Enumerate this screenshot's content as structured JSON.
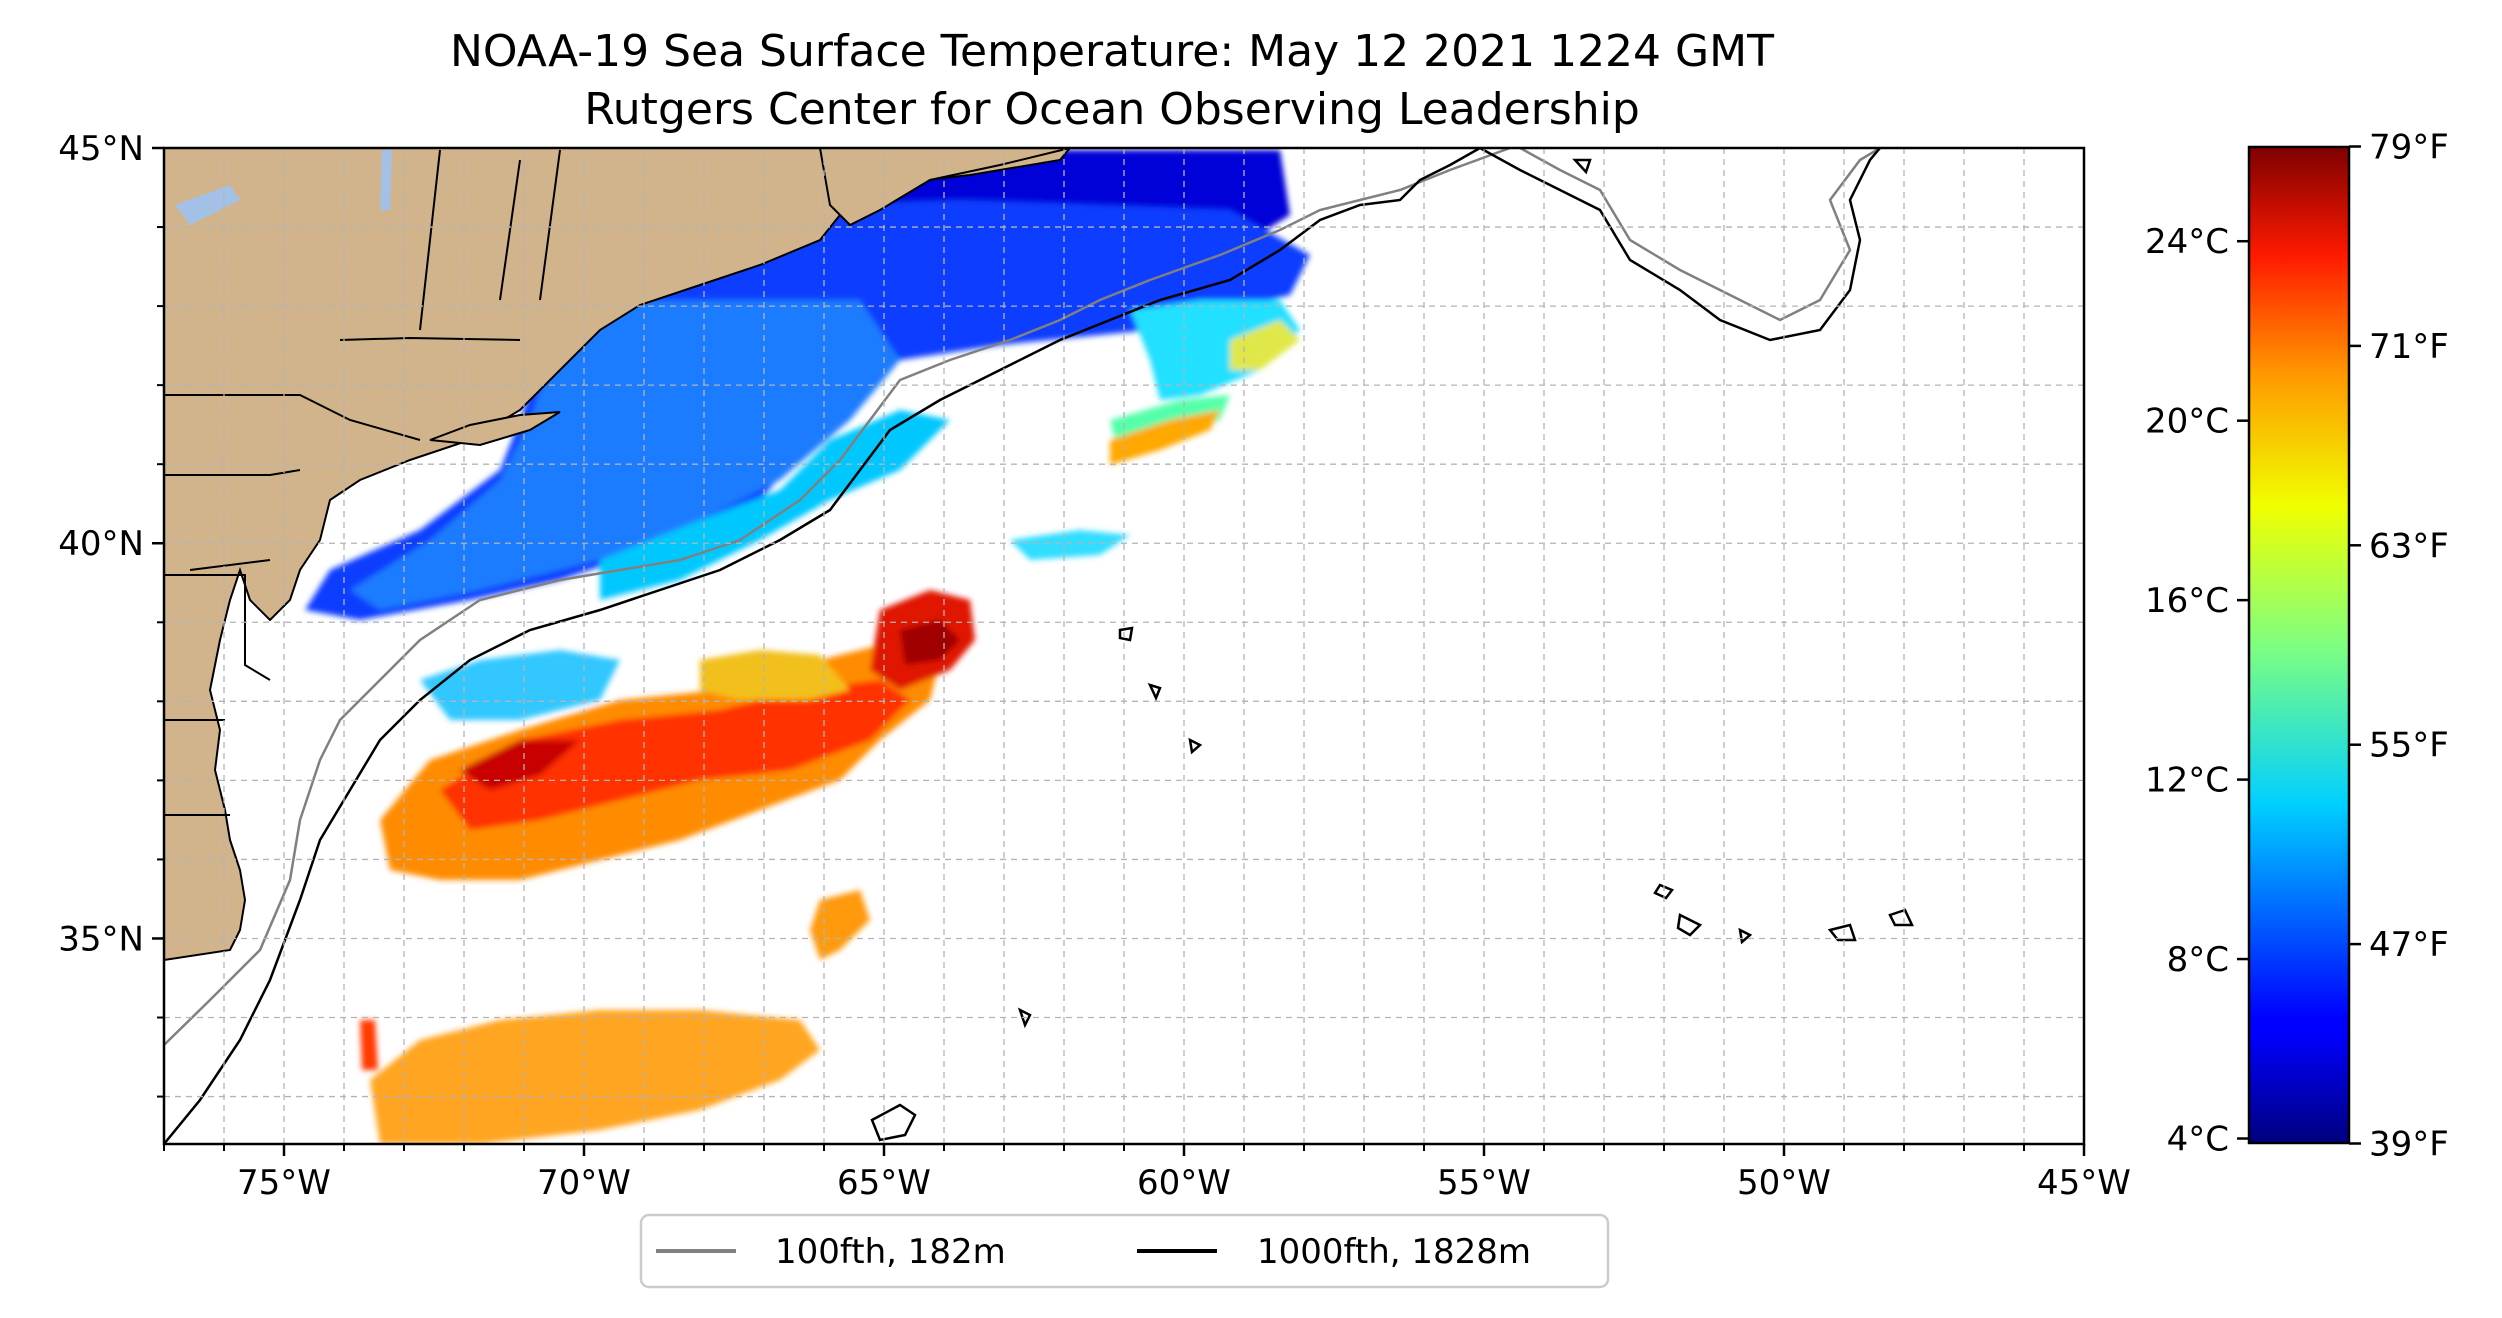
{
  "title": {
    "line1": "NOAA-19 Sea Surface Temperature: May 12 2021 1224 GMT",
    "line2": "Rutgers Center for Ocean Observing Leadership"
  },
  "map": {
    "lon_range": [
      -77,
      -45
    ],
    "lat_range": [
      32.4,
      45
    ],
    "lat_ticks": [
      {
        "value": 45,
        "label": "45°N"
      },
      {
        "value": 40,
        "label": "40°N"
      },
      {
        "value": 35,
        "label": "35°N"
      }
    ],
    "lon_ticks": [
      {
        "value": -75,
        "label": "75°W"
      },
      {
        "value": -70,
        "label": "70°W"
      },
      {
        "value": -65,
        "label": "65°W"
      },
      {
        "value": -60,
        "label": "60°W"
      },
      {
        "value": -55,
        "label": "55°W"
      },
      {
        "value": -50,
        "label": "50°W"
      },
      {
        "value": -45,
        "label": "45°W"
      }
    ],
    "grid": true,
    "land_color": "#d2b48c"
  },
  "legend": {
    "placement": "bottom-center",
    "items": [
      {
        "label": "100fth, 182m",
        "color": "#808080"
      },
      {
        "label": "1000fth, 1828m",
        "color": "#000000"
      }
    ]
  },
  "colorbar": {
    "colormap": "jet",
    "range_c": [
      3.9,
      26.1
    ],
    "celsius_ticks": [
      {
        "value": 24,
        "label": "24°C"
      },
      {
        "value": 20,
        "label": "20°C"
      },
      {
        "value": 16,
        "label": "16°C"
      },
      {
        "value": 12,
        "label": "12°C"
      },
      {
        "value": 8,
        "label": "8°C"
      },
      {
        "value": 4,
        "label": "4°C"
      }
    ],
    "fahrenheit_ticks": [
      {
        "value": 79,
        "label": "79°F"
      },
      {
        "value": 71,
        "label": "71°F"
      },
      {
        "value": 63,
        "label": "63°F"
      },
      {
        "value": 55,
        "label": "55°F"
      },
      {
        "value": 47,
        "label": "47°F"
      },
      {
        "value": 39,
        "label": "39°F"
      }
    ]
  }
}
